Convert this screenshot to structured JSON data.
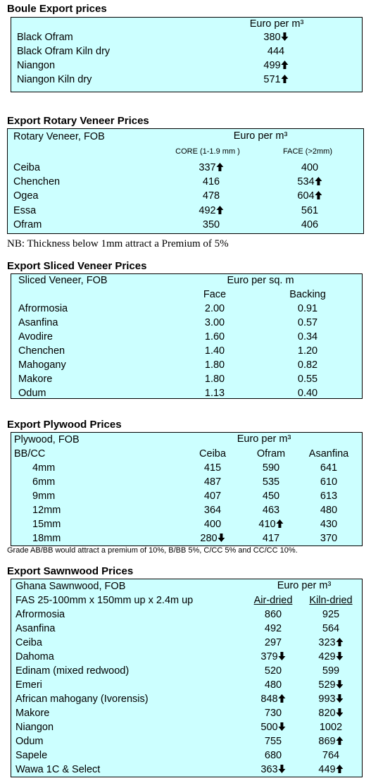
{
  "boule": {
    "title": "Boule Export prices",
    "unit": "Euro per m³",
    "rows": [
      [
        "Black Ofram",
        {
          "text": "380",
          "trend": "down"
        }
      ],
      [
        "Black Ofram  Kiln dry",
        "444"
      ],
      [
        "Niangon",
        {
          "text": "499",
          "trend": "up"
        }
      ],
      [
        "Niangon Kiln dry",
        {
          "text": "571",
          "trend": "up"
        }
      ]
    ]
  },
  "rotary": {
    "title": "Export Rotary Veneer Prices",
    "label": "Rotary Veneer,  FOB",
    "unit": "Euro  per m³",
    "columns": [
      "CORE (1-1.9 mm )",
      "FACE (>2mm)"
    ],
    "rows": [
      [
        "Ceiba",
        {
          "text": "337",
          "trend": "up"
        },
        "400"
      ],
      [
        "Chenchen",
        "416",
        {
          "text": "534",
          "trend": "up"
        }
      ],
      [
        "Ogea",
        "478",
        {
          "text": "604",
          "trend": "up"
        }
      ],
      [
        "Essa",
        {
          "text": "492",
          "trend": "up"
        },
        "561"
      ],
      [
        "Ofram",
        "350",
        "406"
      ]
    ],
    "note": "NB: Thickness below 1mm attract a Premium of 5%"
  },
  "sliced": {
    "title": "Export Sliced Veneer Prices",
    "label": "Sliced Veneer, FOB",
    "unit": "Euro per sq. m",
    "columns": [
      "Face",
      "Backing"
    ],
    "rows": [
      [
        "Afrormosia",
        "2.00",
        "0.91"
      ],
      [
        "Asanfina",
        "3.00",
        "0.57"
      ],
      [
        "Avodire",
        "1.60",
        "0.34"
      ],
      [
        "Chenchen",
        "1.40",
        "1.20"
      ],
      [
        "Mahogany",
        "1.80",
        "0.82"
      ],
      [
        "Makore",
        "1.80",
        "0.55"
      ],
      [
        "Odum",
        "1.13",
        "0.40"
      ]
    ]
  },
  "plywood": {
    "title": "Export Plywood Prices",
    "label": "Plywood, FOB",
    "unit": "Euro per m³",
    "grade": "BB/CC",
    "columns": [
      "Ceiba",
      "Ofram",
      "Asanfina"
    ],
    "rows": [
      [
        "4mm",
        "415",
        "590",
        "641"
      ],
      [
        "6mm",
        "487",
        "535",
        "610"
      ],
      [
        "9mm",
        "407",
        "450",
        "613"
      ],
      [
        "12mm",
        "364",
        "463",
        "480"
      ],
      [
        "15mm",
        "400",
        {
          "text": "410",
          "trend": "up"
        },
        "430"
      ],
      [
        "18mm",
        {
          "text": "280",
          "trend": "down"
        },
        "417",
        "370"
      ]
    ],
    "note": "Grade AB/BB would attract a premium of 10%, B/BB 5%, C/CC 5% and CC/CC 10%."
  },
  "sawnwood": {
    "title": "Export Sawnwood Prices",
    "label": "Ghana Sawnwood, FOB",
    "unit": "Euro per m³",
    "spec": "FAS 25-100mm x 150mm up x 2.4m up",
    "columns": [
      "Air-dried",
      "Kiln-dried"
    ],
    "rows": [
      [
        "Afrormosia",
        "860",
        "925"
      ],
      [
        "Asanfina",
        "492",
        "564"
      ],
      [
        "Ceiba",
        "297",
        {
          "text": "323",
          "trend": "up"
        }
      ],
      [
        "Dahoma",
        {
          "text": "379",
          "trend": "down"
        },
        {
          "text": "429",
          "trend": "down"
        }
      ],
      [
        "Edinam (mixed redwood)",
        "520",
        "599"
      ],
      [
        "Emeri",
        "480",
        {
          "text": "529",
          "trend": "down"
        }
      ],
      [
        "African mahogany (Ivorensis)",
        {
          "text": "848",
          "trend": "up"
        },
        {
          "text": "993",
          "trend": "down"
        }
      ],
      [
        "Makore",
        "730",
        {
          "text": "820",
          "trend": "down"
        }
      ],
      [
        "Niangon",
        {
          "text": "500",
          "trend": "down"
        },
        "1002"
      ],
      [
        "Odum",
        "755",
        {
          "text": "869",
          "trend": "up"
        }
      ],
      [
        "Sapele",
        "680",
        "764"
      ],
      [
        "Wawa 1C & Select",
        {
          "text": "363",
          "trend": "down"
        },
        {
          "text": "449",
          "trend": "up"
        }
      ]
    ]
  }
}
